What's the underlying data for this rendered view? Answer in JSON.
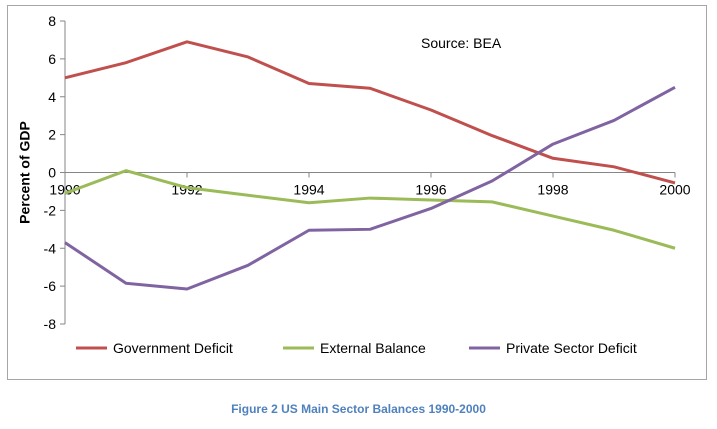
{
  "chart_data": {
    "type": "line",
    "title": "",
    "xlabel": "",
    "ylabel": "Percent of GDP",
    "annotation": "Source: BEA",
    "x": [
      1990,
      1991,
      1992,
      1993,
      1994,
      1995,
      1996,
      1997,
      1998,
      1999,
      2000
    ],
    "xticks": [
      "1990",
      "1992",
      "1994",
      "1996",
      "1998",
      "2000"
    ],
    "xlim": [
      1990,
      2000
    ],
    "ylim": [
      -8,
      8
    ],
    "yticks": [
      8,
      6,
      4,
      2,
      0,
      -2,
      -4,
      -6,
      -8
    ],
    "grid": false,
    "legend_position": "bottom",
    "series": [
      {
        "name": "Government Deficit",
        "color": "#c0504d",
        "values": [
          5.0,
          5.8,
          6.9,
          6.1,
          4.7,
          4.45,
          3.3,
          1.95,
          0.75,
          0.3,
          -0.55
        ]
      },
      {
        "name": "External Balance",
        "color": "#9bbb59",
        "values": [
          -1.1,
          0.1,
          -0.8,
          -1.2,
          -1.6,
          -1.35,
          -1.45,
          -1.55,
          -2.3,
          -3.05,
          -4.0
        ]
      },
      {
        "name": "Private Sector Deficit",
        "color": "#8064a2",
        "values": [
          -3.7,
          -5.85,
          -6.15,
          -4.9,
          -3.05,
          -3.0,
          -1.9,
          -0.45,
          1.5,
          2.75,
          4.5
        ]
      }
    ]
  },
  "caption": "Figure 2 US Main Sector Balances 1990-2000"
}
